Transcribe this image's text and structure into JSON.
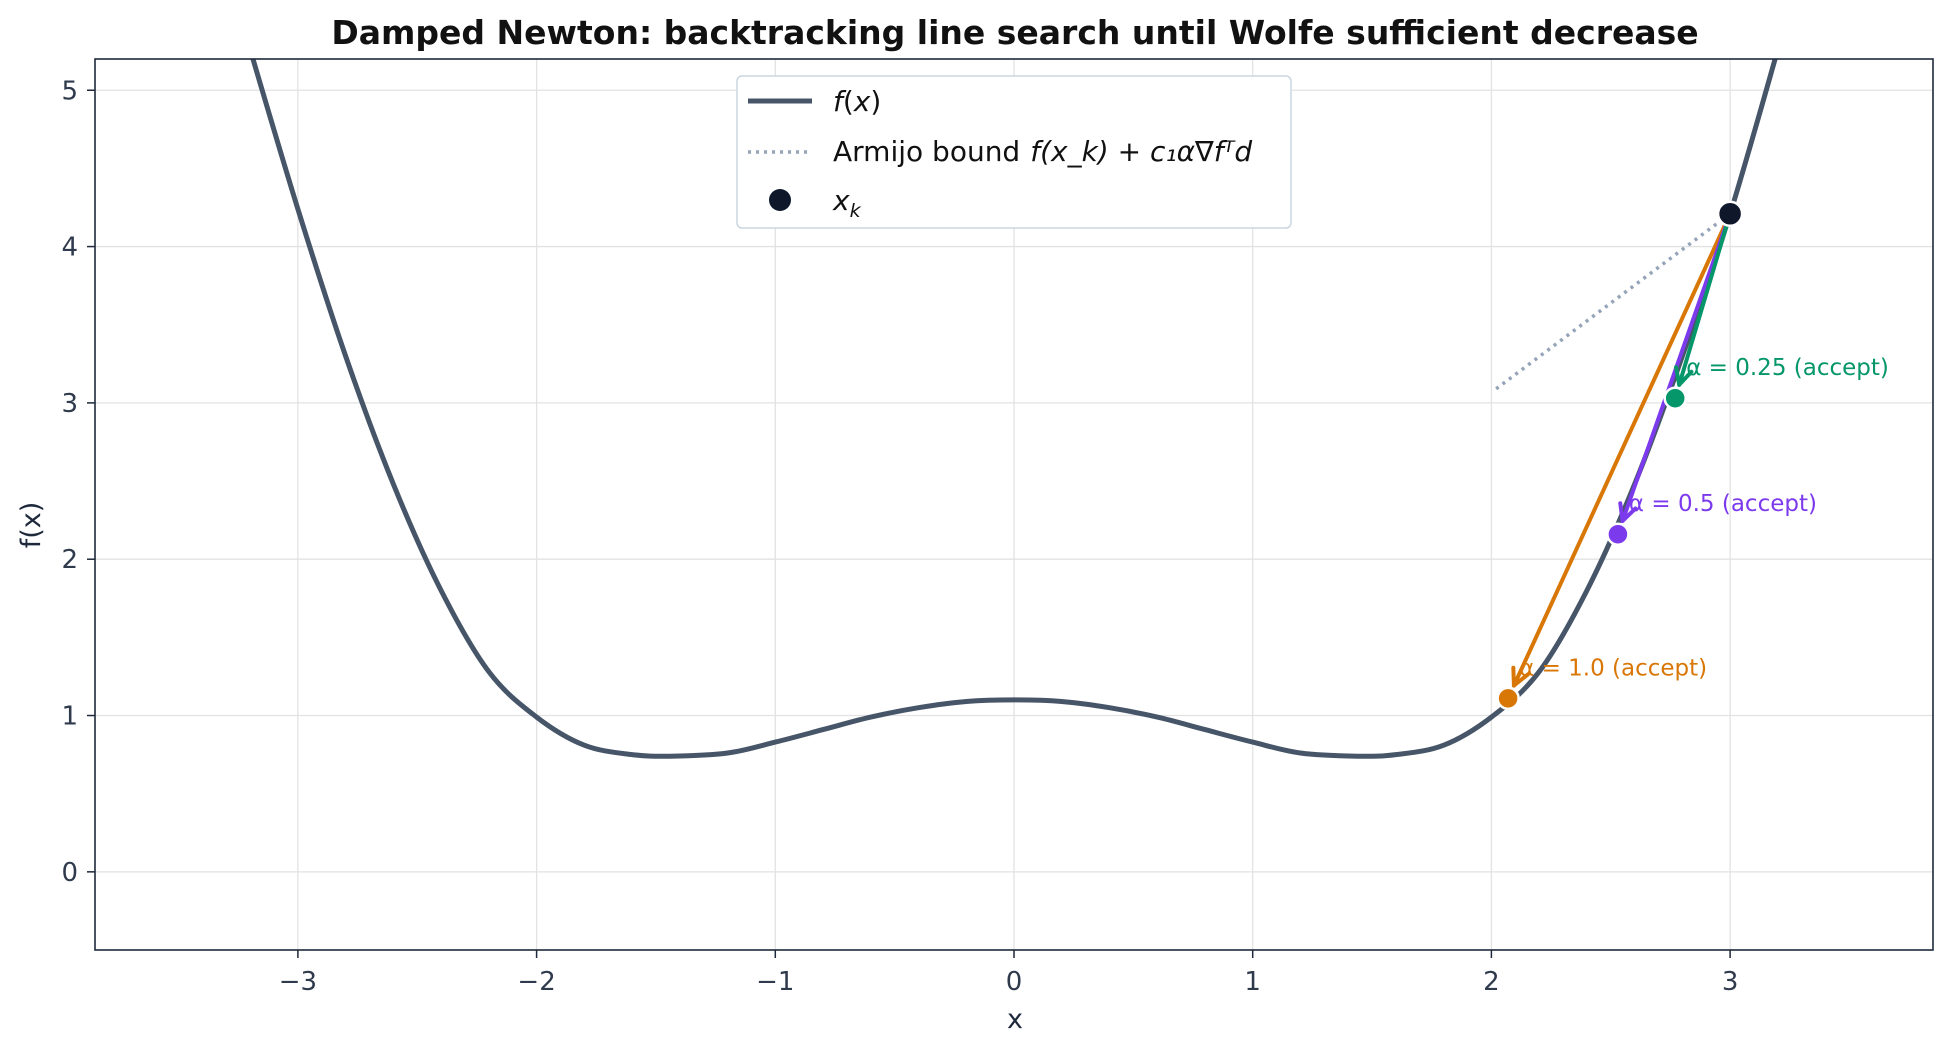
{
  "chart_data": {
    "type": "line",
    "title": "Damped Newton: backtracking line search until Wolfe sufficient decrease",
    "xlabel": "x",
    "ylabel": "f(x)",
    "xlim": [
      -3.85,
      3.85
    ],
    "ylim": [
      -0.5,
      5.2
    ],
    "xticks": [
      -3,
      -2,
      -1,
      0,
      1,
      2,
      3
    ],
    "xtick_labels": [
      "−3",
      "−2",
      "−1",
      "0",
      "1",
      "2",
      "3"
    ],
    "yticks": [
      0,
      1,
      2,
      3,
      4,
      5
    ],
    "ytick_labels": [
      "0",
      "1",
      "2",
      "3",
      "4",
      "5"
    ],
    "grid": true,
    "legend_placement": "upper-center",
    "colors": {
      "curve": "#475569",
      "armijo": "#94a3b8",
      "xk": "#0f172a",
      "alpha_1": "#d97706",
      "alpha_0_5": "#7c3aed",
      "alpha_0_25": "#059669"
    },
    "function_points": {
      "x": [
        -3.2,
        -3.0,
        -2.8,
        -2.6,
        -2.4,
        -2.2,
        -2.0,
        -1.8,
        -1.6,
        -1.44,
        -1.2,
        -1.0,
        -0.8,
        -0.6,
        -0.4,
        -0.2,
        0.0,
        0.2,
        0.4,
        0.6,
        0.8,
        1.0,
        1.2,
        1.44,
        1.6,
        1.8,
        2.0,
        2.2,
        2.4,
        2.6,
        2.8,
        3.0,
        3.2
      ],
      "y": [
        5.26,
        4.24,
        3.3,
        2.48,
        1.8,
        1.28,
        0.99,
        0.81,
        0.75,
        0.74,
        0.76,
        0.83,
        0.91,
        0.99,
        1.05,
        1.09,
        1.1,
        1.09,
        1.05,
        0.99,
        0.91,
        0.83,
        0.76,
        0.74,
        0.75,
        0.81,
        0.99,
        1.28,
        1.8,
        2.48,
        3.3,
        4.21,
        5.26
      ]
    },
    "legend": [
      {
        "label": "f(x)",
        "kind": "line"
      },
      {
        "label": "Armijo bound",
        "math": "f(x_k) + c₁α∇fᵀd",
        "kind": "dotted"
      },
      {
        "label": "x_k",
        "kind": "marker"
      }
    ],
    "armijo_bound": {
      "x": [
        2.02,
        3.0
      ],
      "y": [
        3.09,
        4.21
      ]
    },
    "xk": {
      "x": 3.0,
      "y": 4.21
    },
    "steps": [
      {
        "alpha_label": "α = 1.0 (accept)",
        "x": 2.07,
        "y": 1.11,
        "color_key": "alpha_1"
      },
      {
        "alpha_label": "α = 0.5 (accept)",
        "x": 2.53,
        "y": 2.16,
        "color_key": "alpha_0_5"
      },
      {
        "alpha_label": "α = 0.25 (accept)",
        "x": 2.77,
        "y": 3.03,
        "color_key": "alpha_0_25"
      }
    ]
  }
}
